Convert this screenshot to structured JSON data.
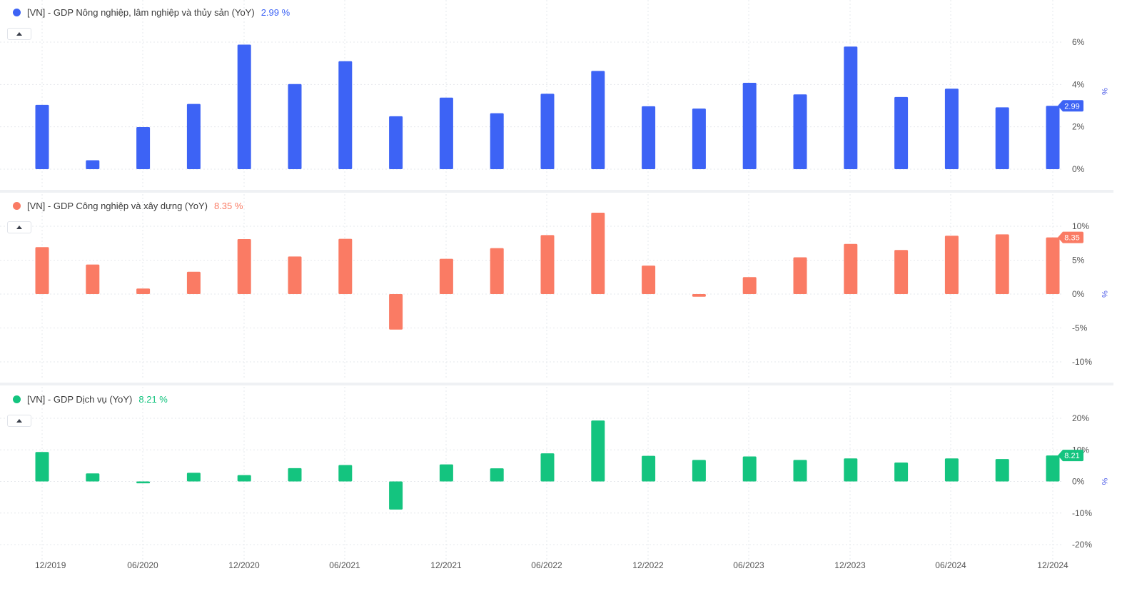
{
  "panels": [
    {
      "legend_label": "[VN] - GDP Nông nghiệp, lâm nghiệp và thủy sản (YoY)",
      "legend_value": "2.99 %",
      "last_value_tag": "2.99",
      "unit": "%",
      "color": "#3d63f5",
      "collapse_icon": "chevron-up-icon"
    },
    {
      "legend_label": "[VN] - GDP Công nghiệp và xây dựng (YoY)",
      "legend_value": "8.35 %",
      "last_value_tag": "8.35",
      "unit": "%",
      "color": "#fa7b64",
      "collapse_icon": "chevron-up-icon"
    },
    {
      "legend_label": "[VN] - GDP Dịch vụ (YoY)",
      "legend_value": "8.21 %",
      "last_value_tag": "8.21",
      "unit": "%",
      "color": "#14c47f",
      "collapse_icon": "chevron-up-icon"
    }
  ],
  "chart_data": [
    {
      "type": "bar",
      "x": [
        "12/2019",
        "03/2020",
        "06/2020",
        "09/2020",
        "12/2020",
        "03/2021",
        "06/2021",
        "09/2021",
        "12/2021",
        "03/2022",
        "06/2022",
        "09/2022",
        "12/2022",
        "03/2023",
        "06/2023",
        "09/2023",
        "12/2023",
        "03/2024",
        "06/2024",
        "09/2024",
        "12/2024"
      ],
      "series": [
        {
          "name": "[VN] - GDP Nông nghiệp, lâm nghiệp và thủy sản (YoY)",
          "values": [
            3.04,
            0.42,
            1.99,
            3.08,
            5.88,
            4.02,
            5.1,
            2.5,
            3.38,
            2.64,
            3.56,
            4.64,
            2.97,
            2.86,
            4.08,
            3.53,
            5.79,
            3.41,
            3.8,
            2.92,
            2.99
          ]
        }
      ],
      "ylim": [
        0,
        8
      ],
      "yticks": [
        0,
        2,
        4,
        6
      ],
      "ytick_labels": [
        "0%",
        "2%",
        "4%",
        "6%"
      ]
    },
    {
      "type": "bar",
      "x": [
        "12/2019",
        "03/2020",
        "06/2020",
        "09/2020",
        "12/2020",
        "03/2021",
        "06/2021",
        "09/2021",
        "12/2021",
        "03/2022",
        "06/2022",
        "09/2022",
        "12/2022",
        "03/2023",
        "06/2023",
        "09/2023",
        "12/2023",
        "03/2024",
        "06/2024",
        "09/2024",
        "12/2024"
      ],
      "series": [
        {
          "name": "[VN] - GDP Công nghiệp và xây dựng (YoY)",
          "values": [
            6.92,
            4.36,
            0.81,
            3.29,
            8.1,
            5.54,
            8.15,
            -5.24,
            5.2,
            6.78,
            8.7,
            12,
            4.2,
            -0.4,
            2.5,
            5.42,
            7.4,
            6.5,
            8.6,
            8.8,
            8.35
          ]
        }
      ],
      "ylim": [
        -10.5,
        12.5
      ],
      "yticks": [
        10,
        5,
        0,
        -5,
        -10
      ],
      "ytick_labels": [
        "10%",
        "5%",
        "0%",
        "-5%",
        "-10%"
      ]
    },
    {
      "type": "bar",
      "x": [
        "12/2019",
        "03/2020",
        "06/2020",
        "09/2020",
        "12/2020",
        "03/2021",
        "06/2021",
        "09/2021",
        "12/2021",
        "03/2022",
        "06/2022",
        "09/2022",
        "12/2022",
        "03/2023",
        "06/2023",
        "09/2023",
        "12/2023",
        "03/2024",
        "06/2024",
        "09/2024",
        "12/2024"
      ],
      "series": [
        {
          "name": "[VN] - GDP Dịch vụ (YoY)",
          "values": [
            9.32,
            2.55,
            -0.6,
            2.75,
            2,
            4.22,
            5.2,
            -8.9,
            5.4,
            4.14,
            8.9,
            19.3,
            8.1,
            6.8,
            7.9,
            6.8,
            7.3,
            6,
            7.3,
            7.1,
            8.21
          ]
        }
      ],
      "ylim": [
        -20,
        20
      ],
      "yticks": [
        20,
        10,
        0,
        -10,
        -20
      ],
      "ytick_labels": [
        "20%",
        "10%",
        "0%",
        "-10%",
        "-20%"
      ]
    }
  ],
  "x_tick_labels": [
    "12/2019",
    "06/2020",
    "12/2020",
    "06/2021",
    "12/2021",
    "06/2022",
    "12/2022",
    "06/2023",
    "12/2023",
    "06/2024",
    "12/2024"
  ]
}
